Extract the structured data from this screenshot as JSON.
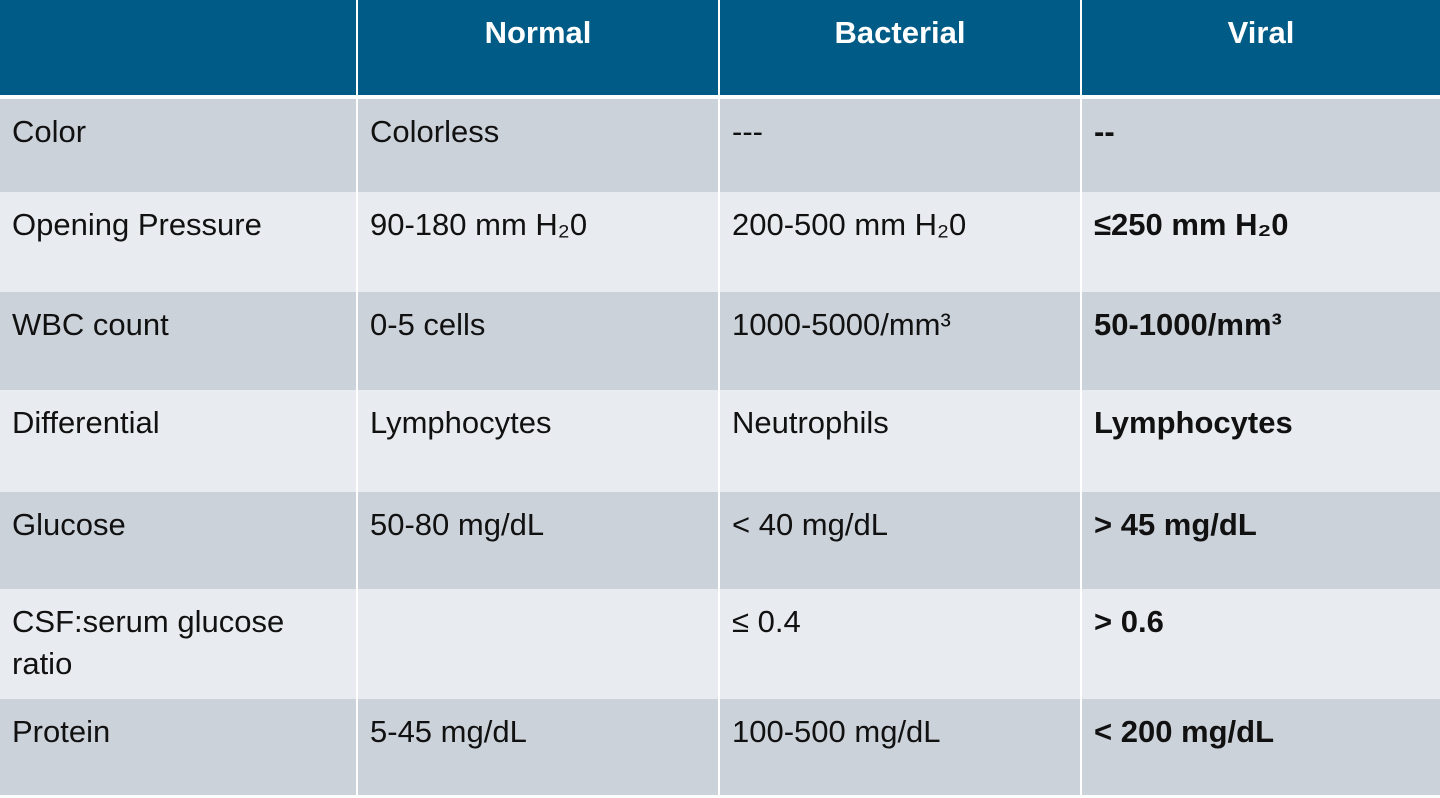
{
  "table": {
    "columns": [
      "Normal",
      "Bacterial",
      "Viral"
    ],
    "rows": [
      [
        "Color",
        "Colorless",
        "---",
        "--"
      ],
      [
        "Opening Pressure",
        "90-180 mm H₂0",
        "200-500 mm H₂0",
        "≤250 mm H₂0"
      ],
      [
        "WBC count",
        "0-5 cells",
        "1000-5000/mm³",
        "50-1000/mm³"
      ],
      [
        "Differential",
        "Lymphocytes",
        "Neutrophils",
        "Lymphocytes"
      ],
      [
        "Glucose",
        "50-80 mg/dL",
        "< 40 mg/dL",
        "> 45 mg/dL"
      ],
      [
        "CSF:serum glucose ratio",
        null,
        "≤ 0.4",
        "> 0.6"
      ],
      [
        "Protein",
        "5-45 mg/dL",
        "100-500 mg/dL",
        "< 200 mg/dL"
      ]
    ]
  }
}
